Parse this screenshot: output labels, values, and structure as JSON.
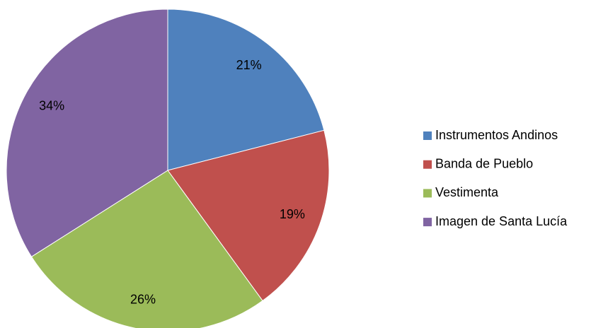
{
  "chart_data": {
    "type": "pie",
    "categories": [
      "Instrumentos Andinos",
      "Banda de Pueblo",
      "Vestimenta",
      "Imagen de Santa Lucía"
    ],
    "values": [
      21,
      19,
      26,
      34
    ],
    "value_labels": [
      "21%",
      "19%",
      "26%",
      "34%"
    ],
    "colors": [
      "#4f81bd",
      "#c0504d",
      "#9bbb59",
      "#8064a2"
    ],
    "legend": "right"
  }
}
